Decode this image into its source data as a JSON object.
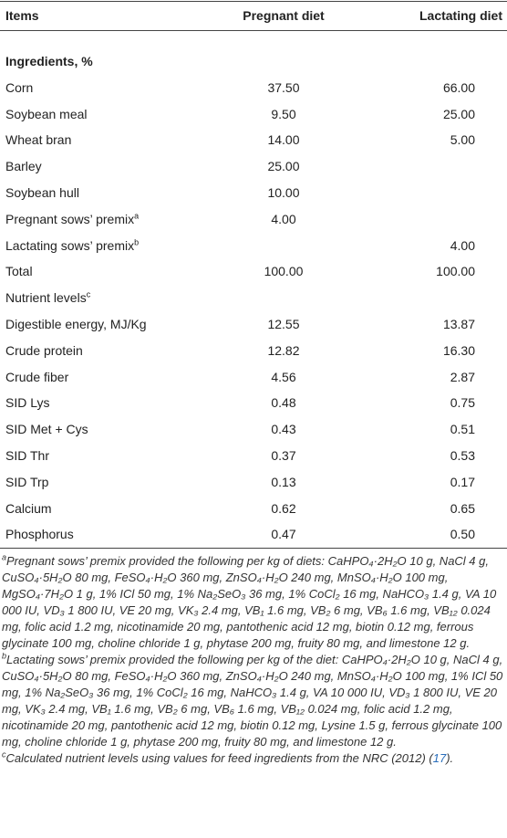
{
  "table": {
    "header": [
      "Items",
      "Pregnant diet",
      "Lactating diet"
    ],
    "rows": [
      {
        "label": "Ingredients, %",
        "section": true
      },
      {
        "label": "Corn",
        "pregnant": "37.50",
        "lactating": "66.00"
      },
      {
        "label": "Soybean meal",
        "pregnant": "9.50",
        "lactating": "25.00"
      },
      {
        "label": "Wheat bran",
        "pregnant": "14.00",
        "lactating": "5.00"
      },
      {
        "label": "Barley",
        "pregnant": "25.00"
      },
      {
        "label": "Soybean hull",
        "pregnant": "10.00"
      },
      {
        "label": "Pregnant sows’ premix",
        "note": "a",
        "pregnant": "4.00"
      },
      {
        "label": "Lactating sows’ premix",
        "note": "b",
        "lactating": "4.00"
      },
      {
        "label": "Total",
        "pregnant": "100.00",
        "lactating": "100.00"
      },
      {
        "label": "Nutrient levels",
        "note": "c"
      },
      {
        "label": "Digestible energy, MJ/Kg",
        "pregnant": "12.55",
        "lactating": "13.87"
      },
      {
        "label": "Crude protein",
        "pregnant": "12.82",
        "lactating": "16.30"
      },
      {
        "label": "Crude fiber",
        "pregnant": "4.56",
        "lactating": "2.87"
      },
      {
        "label": "SID Lys",
        "pregnant": "0.48",
        "lactating": "0.75"
      },
      {
        "label": "SID Met + Cys",
        "pregnant": "0.43",
        "lactating": "0.51"
      },
      {
        "label": "SID Thr",
        "pregnant": "0.37",
        "lactating": "0.53"
      },
      {
        "label": "SID Trp",
        "pregnant": "0.13",
        "lactating": "0.17"
      },
      {
        "label": "Calcium",
        "pregnant": "0.62",
        "lactating": "0.65"
      },
      {
        "label": "Phosphorus",
        "pregnant": "0.47",
        "lactating": "0.50"
      }
    ],
    "footnotes": [
      {
        "mark": "a",
        "text": "Pregnant sows’ premix provided the following per kg of diets: CaHPO₄·2H₂O 10 g, NaCl 4 g, CuSO₄·5H₂O 80 mg, FeSO₄·H₂O 360 mg, ZnSO₄·H₂O 240 mg, MnSO₄·H₂O 100 mg, MgSO₄·7H₂O 1 g, 1% ICl 50 mg, 1% Na₂SeO₃ 36 mg, 1% CoCl₂ 16 mg, NaHCO₃ 1.4 g, VA 10 000 IU, VD₃ 1 800 IU, VE 20 mg, VK₃ 2.4 mg, VB₁ 1.6 mg, VB₂ 6 mg, VB₆ 1.6 mg, VB₁₂ 0.024 mg, folic acid 1.2 mg, nicotinamide 20 mg, pantothenic acid 12 mg, biotin 0.12 mg, ferrous glycinate 100 mg, choline chloride 1 g, phytase 200 mg, fruity 80 mg, and limestone 12 g."
      },
      {
        "mark": "b",
        "text": "Lactating sows’ premix provided the following per kg of the diet: CaHPO₄·2H₂O 10 g, NaCl 4 g, CuSO₄·5H₂O 80 mg, FeSO₄·H₂O 360 mg, ZnSO₄·H₂O 240 mg, MnSO₄·H₂O 100 mg, 1% ICl 50 mg, 1% Na₂SeO₃ 36 mg, 1% CoCl₂ 16 mg, NaHCO₃ 1.4 g, VA 10 000 IU, VD₃ 1 800 IU, VE 20 mg, VK₃ 2.4 mg, VB₁ 1.6 mg, VB₂ 6 mg, VB₆ 1.6 mg, VB₁₂ 0.024 mg, folic acid 1.2 mg, nicotinamide 20 mg, pantothenic acid 12 mg, biotin 0.12 mg, Lysine 1.5 g, ferrous glycinate 100 mg, choline chloride 1 g, phytase 200 mg, fruity 80 mg, and limestone 12 g."
      },
      {
        "mark": "c",
        "text": "Calculated nutrient levels using values for feed ingredients from the NRC (2012) (",
        "ref": "17",
        "tail": ")."
      }
    ]
  }
}
